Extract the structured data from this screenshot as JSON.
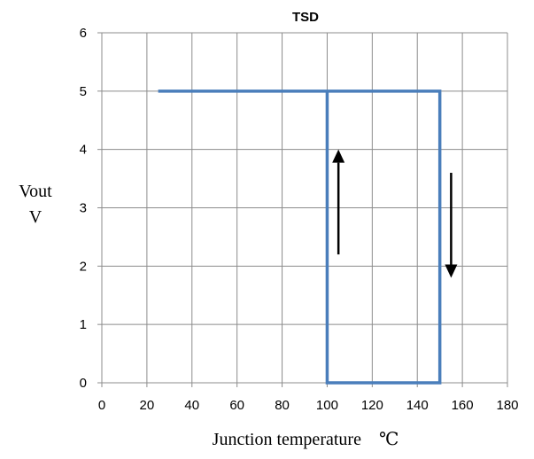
{
  "chart_data": {
    "type": "line",
    "title": "TSD",
    "xlabel": "Junction temperature　℃",
    "ylabel_line1": "Vout",
    "ylabel_line2": "V",
    "xlim": [
      0,
      180
    ],
    "ylim": [
      0,
      6
    ],
    "x_ticks": [
      0,
      20,
      40,
      60,
      80,
      100,
      120,
      140,
      160,
      180
    ],
    "y_ticks": [
      0,
      1,
      2,
      3,
      4,
      5,
      6
    ],
    "grid": true,
    "legend": "none",
    "series": [
      {
        "color": "#4a7ebb",
        "points": [
          [
            25,
            5
          ],
          [
            150,
            5
          ],
          [
            150,
            0
          ],
          [
            100,
            0
          ],
          [
            100,
            5
          ]
        ]
      }
    ],
    "annotations": [
      {
        "type": "arrow",
        "direction": "up",
        "x": 105,
        "y_from": 2.2,
        "y_to": 4.0
      },
      {
        "type": "arrow",
        "direction": "down",
        "x": 155,
        "y_from": 3.6,
        "y_to": 1.8
      }
    ]
  }
}
